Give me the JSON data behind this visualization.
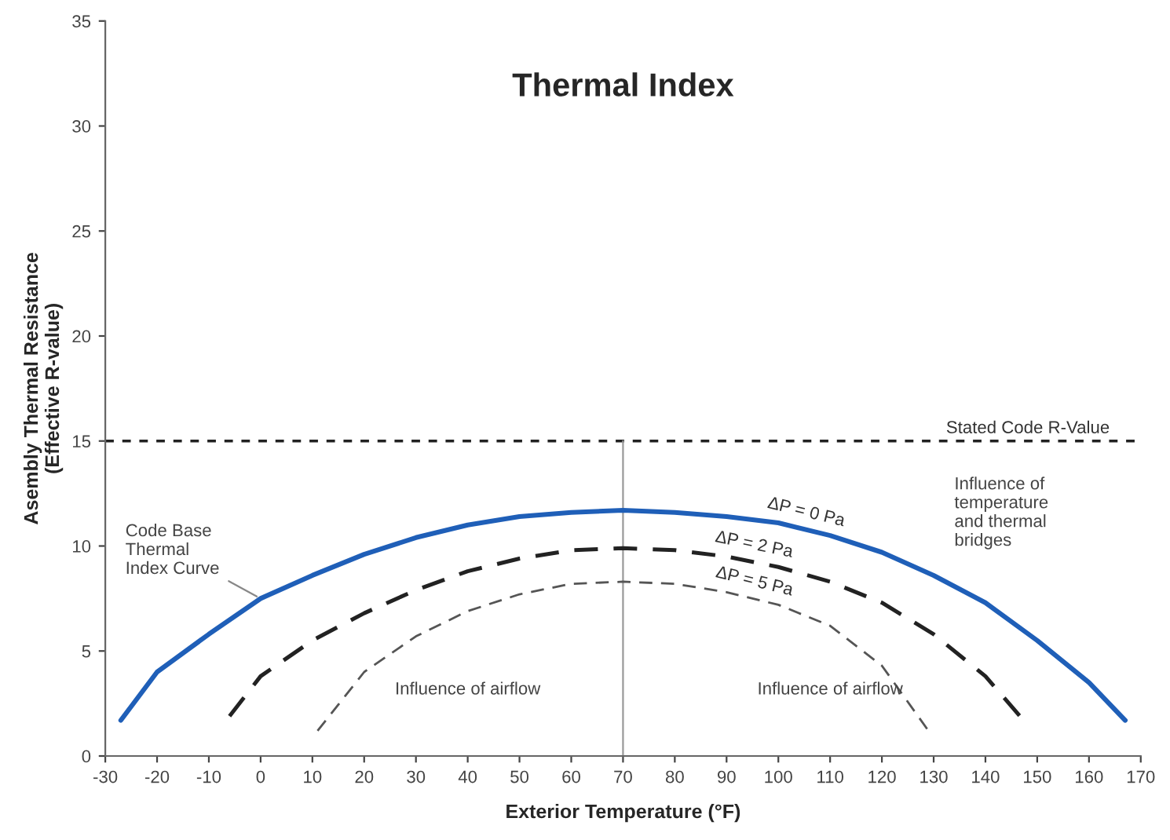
{
  "chart_data": {
    "type": "line",
    "title": "Thermal Index",
    "xlabel": "Exterior Temperature (°F)",
    "ylabel": "Asembly Thermal Resistance\n(Effective R-value)",
    "xlim": [
      -30,
      170
    ],
    "xticks": [
      -30,
      -20,
      -10,
      0,
      10,
      20,
      30,
      40,
      50,
      60,
      70,
      80,
      90,
      100,
      110,
      120,
      130,
      140,
      150,
      160,
      170
    ],
    "ylim": [
      0,
      35
    ],
    "yticks": [
      0,
      5,
      10,
      15,
      20,
      25,
      30,
      35
    ],
    "grid": false,
    "marker": "none",
    "series": [
      {
        "name": "ΔP = 0 Pa",
        "color": "#1f5fb8",
        "line_style": "solid",
        "x": [
          -27,
          -20,
          -10,
          0,
          10,
          20,
          30,
          40,
          50,
          60,
          70,
          80,
          90,
          100,
          110,
          120,
          130,
          140,
          150,
          160,
          167
        ],
        "values": [
          1.7,
          4.0,
          5.8,
          7.5,
          8.6,
          9.6,
          10.4,
          11.0,
          11.4,
          11.6,
          11.7,
          11.6,
          11.4,
          11.1,
          10.5,
          9.7,
          8.6,
          7.3,
          5.5,
          3.5,
          1.7
        ]
      },
      {
        "name": "ΔP = 2 Pa",
        "color": "#222222",
        "line_style": "dashed",
        "x": [
          -6,
          0,
          10,
          20,
          30,
          40,
          50,
          60,
          70,
          80,
          90,
          100,
          110,
          120,
          130,
          140,
          147
        ],
        "values": [
          1.9,
          3.8,
          5.5,
          6.8,
          7.9,
          8.8,
          9.4,
          9.8,
          9.9,
          9.8,
          9.5,
          9.0,
          8.3,
          7.3,
          5.8,
          3.8,
          1.8
        ]
      },
      {
        "name": "ΔP = 5 Pa",
        "color": "#555555",
        "line_style": "dashed",
        "x": [
          11,
          20,
          30,
          40,
          50,
          60,
          70,
          80,
          90,
          100,
          110,
          120,
          129
        ],
        "values": [
          1.2,
          4.0,
          5.7,
          6.9,
          7.7,
          8.2,
          8.3,
          8.2,
          7.8,
          7.2,
          6.2,
          4.3,
          1.2
        ]
      }
    ],
    "ref_lines": [
      {
        "axis": "y",
        "value": 15,
        "label": "Stated Code R-Value",
        "color": "#222222",
        "line_style": "dotted"
      },
      {
        "axis": "x",
        "value": 70,
        "label": null,
        "color": "#999999",
        "line_style": "solid"
      }
    ],
    "annotations": [
      {
        "text": "Code Base\nThermal\nIndex Curve",
        "x": 0,
        "y": 7.5
      },
      "Influence of airflow",
      "Influence of airflow",
      "Influence of\ntemperature\nand thermal\nbridges"
    ]
  }
}
